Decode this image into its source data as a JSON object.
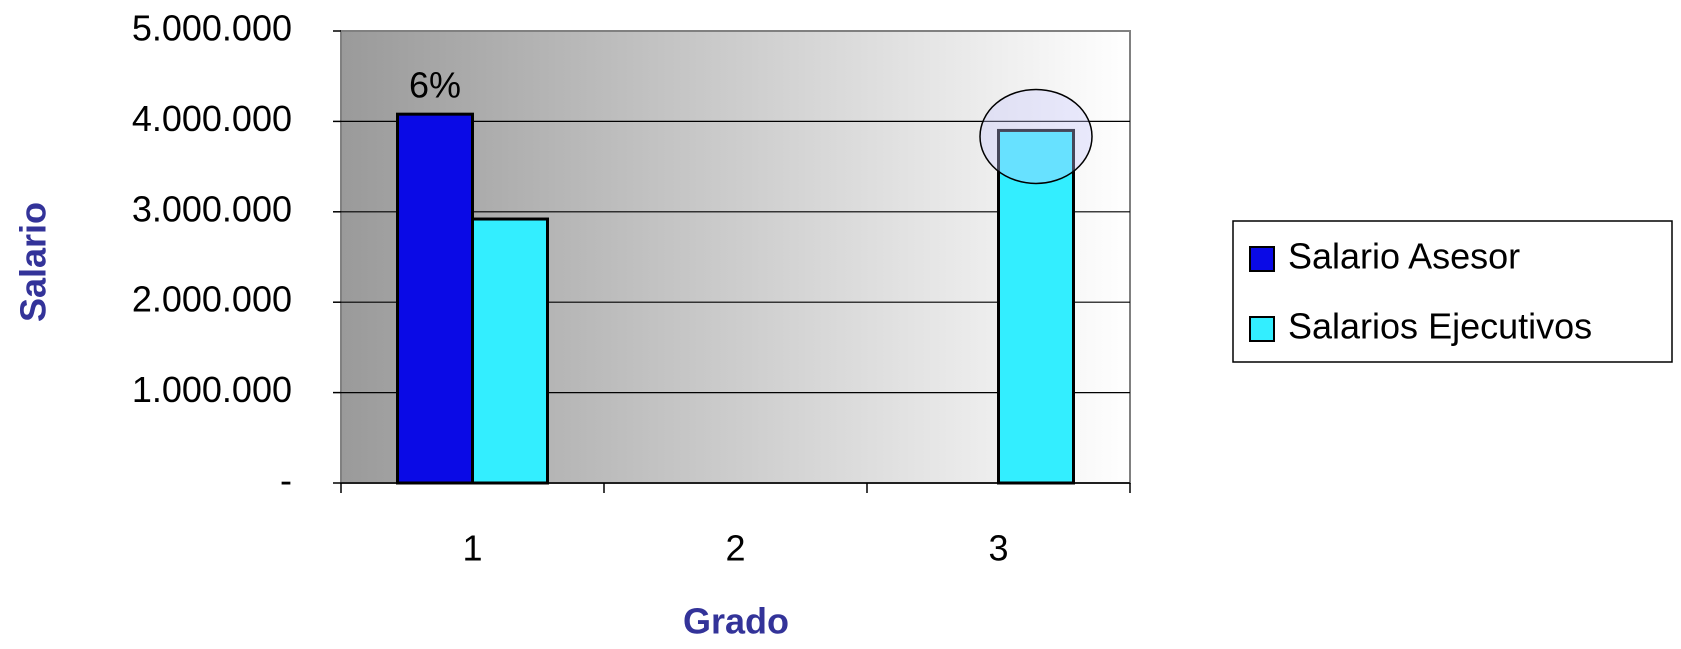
{
  "chart_data": {
    "type": "bar",
    "x_label": "Grado",
    "y_label": "Salario",
    "categories": [
      "1",
      "2",
      "3"
    ],
    "series": [
      {
        "name": "Salario Asesor",
        "color": "#0a0ae6",
        "values": [
          4080000,
          null,
          null
        ]
      },
      {
        "name": "Salarios Ejecutivos",
        "color": "#33eeff",
        "values": [
          2920000,
          null,
          3900000
        ]
      }
    ],
    "annotation": "6%",
    "ylim": [
      0,
      5000000
    ],
    "yticks": [
      {
        "value": 0,
        "label": "-"
      },
      {
        "value": 1000000,
        "label": "1.000.000"
      },
      {
        "value": 2000000,
        "label": "2.000.000"
      },
      {
        "value": 3000000,
        "label": "3.000.000"
      },
      {
        "value": 4000000,
        "label": "4.000.000"
      },
      {
        "value": 5000000,
        "label": "5.000.000"
      }
    ],
    "grid": true,
    "legend": "right"
  }
}
